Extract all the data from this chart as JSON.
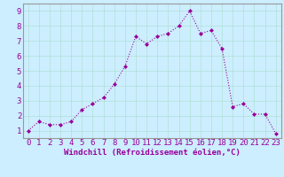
{
  "x": [
    0,
    1,
    2,
    3,
    4,
    5,
    6,
    7,
    8,
    9,
    10,
    11,
    12,
    13,
    14,
    15,
    16,
    17,
    18,
    19,
    20,
    21,
    22,
    23
  ],
  "y": [
    1.0,
    1.6,
    1.4,
    1.4,
    1.6,
    2.4,
    2.8,
    3.2,
    4.1,
    5.3,
    7.3,
    6.8,
    7.3,
    7.5,
    8.0,
    9.0,
    7.5,
    7.7,
    6.5,
    2.6,
    2.8,
    2.1,
    2.1,
    0.8
  ],
  "line_color": "#990099",
  "marker": "D",
  "marker_size": 2,
  "bg_color": "#cceeff",
  "grid_color": "#aaddcc",
  "xlabel": "Windchill (Refroidissement éolien,°C)",
  "ylabel_ticks": [
    1,
    2,
    3,
    4,
    5,
    6,
    7,
    8,
    9
  ],
  "xlim": [
    -0.5,
    23.5
  ],
  "ylim": [
    0.5,
    9.5
  ],
  "xlabel_fontsize": 6.5,
  "tick_fontsize": 6.5,
  "tick_color": "#990099",
  "xlabel_color": "#990099",
  "spine_color": "#999999"
}
